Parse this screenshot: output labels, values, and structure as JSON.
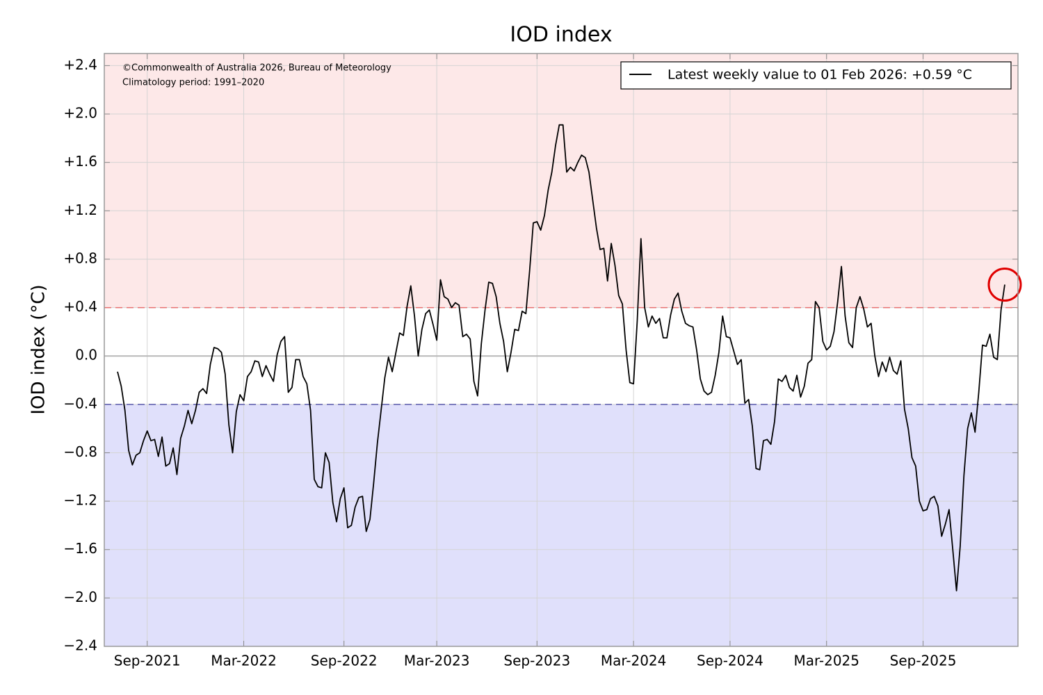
{
  "chart_data": {
    "type": "line",
    "title": "IOD index",
    "y_label": "IOD index (°C)",
    "annotations": [
      "©Commonwealth of Australia 2026, Bureau of Meteorology",
      "Climatology period: 1991–2020"
    ],
    "legend": "Latest weekly value to 01 Feb 2026: +0.59 °C",
    "legend_position": "upper right",
    "color": "#000000",
    "grid": true,
    "thresholds": {
      "positive": 0.4,
      "negative": -0.4
    },
    "threshold_colors": {
      "positive": "#e87070",
      "negative": "#5a5aaa"
    },
    "region_colors": {
      "positive": "#fde8e8",
      "negative": "#e0e0fb"
    },
    "highlight_color": "#e00000",
    "ylim": [
      -2.4,
      2.5
    ],
    "yticks": [
      {
        "value": -2.4,
        "label": "−2.4"
      },
      {
        "value": -2.0,
        "label": "−2.0"
      },
      {
        "value": -1.6,
        "label": "−1.6"
      },
      {
        "value": -1.2,
        "label": "−1.2"
      },
      {
        "value": -0.8,
        "label": "−0.8"
      },
      {
        "value": -0.4,
        "label": "−0.4"
      },
      {
        "value": 0,
        "label": "0.0"
      },
      {
        "value": 0.4,
        "label": "+0.4"
      },
      {
        "value": 0.8,
        "label": "+0.8"
      },
      {
        "value": 1.2,
        "label": "+1.2"
      },
      {
        "value": 1.6,
        "label": "+1.6"
      },
      {
        "value": 2.0,
        "label": "+2.0"
      },
      {
        "value": 2.4,
        "label": "+2.4"
      }
    ],
    "categories": [
      null,
      null,
      null,
      null,
      null,
      null,
      null,
      null,
      "Sep-2021",
      null,
      null,
      null,
      null,
      null,
      null,
      null,
      null,
      null,
      null,
      null,
      null,
      null,
      null,
      null,
      null,
      null,
      null,
      null,
      null,
      null,
      null,
      null,
      null,
      null,
      "Mar-2022",
      null,
      null,
      null,
      null,
      null,
      null,
      null,
      null,
      null,
      null,
      null,
      null,
      null,
      null,
      null,
      null,
      null,
      null,
      null,
      null,
      null,
      null,
      null,
      null,
      null,
      null,
      "Sep-2022",
      null,
      null,
      null,
      null,
      null,
      null,
      null,
      null,
      null,
      null,
      null,
      null,
      null,
      null,
      null,
      null,
      null,
      null,
      null,
      null,
      null,
      null,
      null,
      null,
      "Mar-2023",
      null,
      null,
      null,
      null,
      null,
      null,
      null,
      null,
      null,
      null,
      null,
      null,
      null,
      null,
      null,
      null,
      null,
      null,
      null,
      null,
      null,
      null,
      null,
      null,
      null,
      null,
      "Sep-2023",
      null,
      null,
      null,
      null,
      null,
      null,
      null,
      null,
      null,
      null,
      null,
      null,
      null,
      null,
      null,
      null,
      null,
      null,
      null,
      null,
      null,
      null,
      null,
      null,
      null,
      "Mar-2024",
      null,
      null,
      null,
      null,
      null,
      null,
      null,
      null,
      null,
      null,
      null,
      null,
      null,
      null,
      null,
      null,
      null,
      null,
      null,
      null,
      null,
      null,
      null,
      null,
      null,
      "Sep-2024",
      null,
      null,
      null,
      null,
      null,
      null,
      null,
      null,
      null,
      null,
      null,
      null,
      null,
      null,
      null,
      null,
      null,
      null,
      null,
      null,
      null,
      null,
      null,
      null,
      null,
      "Mar-2025",
      null,
      null,
      null,
      null,
      null,
      null,
      null,
      null,
      null,
      null,
      null,
      null,
      null,
      null,
      null,
      null,
      null,
      null,
      null,
      null,
      null,
      null,
      null,
      null,
      null,
      "Sep-2025",
      null,
      null,
      null,
      null,
      null,
      null,
      null,
      null,
      null,
      null,
      null,
      null,
      null,
      null,
      null,
      null,
      null,
      null,
      null,
      null,
      null,
      null
    ],
    "values": [
      -0.13,
      -0.25,
      -0.45,
      -0.78,
      -0.9,
      -0.82,
      -0.8,
      -0.7,
      -0.62,
      -0.7,
      -0.69,
      -0.83,
      -0.67,
      -0.91,
      -0.89,
      -0.76,
      -0.98,
      -0.68,
      -0.58,
      -0.45,
      -0.56,
      -0.45,
      -0.3,
      -0.27,
      -0.31,
      -0.07,
      0.07,
      0.06,
      0.03,
      -0.15,
      -0.57,
      -0.8,
      -0.46,
      -0.32,
      -0.37,
      -0.17,
      -0.13,
      -0.04,
      -0.05,
      -0.17,
      -0.08,
      -0.15,
      -0.21,
      0.01,
      0.12,
      0.16,
      -0.3,
      -0.26,
      -0.03,
      -0.03,
      -0.17,
      -0.23,
      -0.45,
      -1.02,
      -1.08,
      -1.09,
      -0.8,
      -0.88,
      -1.21,
      -1.37,
      -1.18,
      -1.09,
      -1.42,
      -1.4,
      -1.25,
      -1.17,
      -1.16,
      -1.45,
      -1.35,
      -1.05,
      -0.72,
      -0.45,
      -0.18,
      -0.01,
      -0.13,
      0.03,
      0.19,
      0.17,
      0.41,
      0.58,
      0.33,
      0.0,
      0.22,
      0.35,
      0.38,
      0.26,
      0.13,
      0.63,
      0.49,
      0.47,
      0.4,
      0.44,
      0.42,
      0.16,
      0.18,
      0.14,
      -0.21,
      -0.33,
      0.1,
      0.38,
      0.61,
      0.6,
      0.49,
      0.27,
      0.12,
      -0.13,
      0.03,
      0.22,
      0.21,
      0.37,
      0.35,
      0.7,
      1.1,
      1.11,
      1.04,
      1.16,
      1.37,
      1.52,
      1.74,
      1.91,
      1.91,
      1.52,
      1.56,
      1.53,
      1.6,
      1.66,
      1.64,
      1.52,
      1.29,
      1.06,
      0.88,
      0.89,
      0.62,
      0.93,
      0.75,
      0.5,
      0.43,
      0.05,
      -0.22,
      -0.23,
      0.29,
      0.97,
      0.4,
      0.24,
      0.33,
      0.27,
      0.31,
      0.15,
      0.15,
      0.34,
      0.47,
      0.52,
      0.37,
      0.27,
      0.25,
      0.24,
      0.05,
      -0.19,
      -0.29,
      -0.32,
      -0.3,
      -0.16,
      0.03,
      0.33,
      0.16,
      0.15,
      0.04,
      -0.07,
      -0.03,
      -0.39,
      -0.36,
      -0.58,
      -0.93,
      -0.94,
      -0.7,
      -0.69,
      -0.73,
      -0.54,
      -0.19,
      -0.21,
      -0.16,
      -0.26,
      -0.29,
      -0.16,
      -0.34,
      -0.25,
      -0.06,
      -0.03,
      0.45,
      0.4,
      0.12,
      0.05,
      0.08,
      0.2,
      0.45,
      0.74,
      0.33,
      0.11,
      0.07,
      0.4,
      0.49,
      0.39,
      0.24,
      0.27,
      0.0,
      -0.17,
      -0.05,
      -0.13,
      -0.01,
      -0.12,
      -0.15,
      -0.04,
      -0.44,
      -0.6,
      -0.84,
      -0.91,
      -1.2,
      -1.28,
      -1.27,
      -1.18,
      -1.16,
      -1.24,
      -1.49,
      -1.39,
      -1.27,
      -1.6,
      -1.94,
      -1.57,
      -0.99,
      -0.6,
      -0.47,
      -0.63,
      -0.3,
      0.09,
      0.08,
      0.18,
      -0.01,
      -0.03,
      0.38,
      0.59
    ]
  }
}
